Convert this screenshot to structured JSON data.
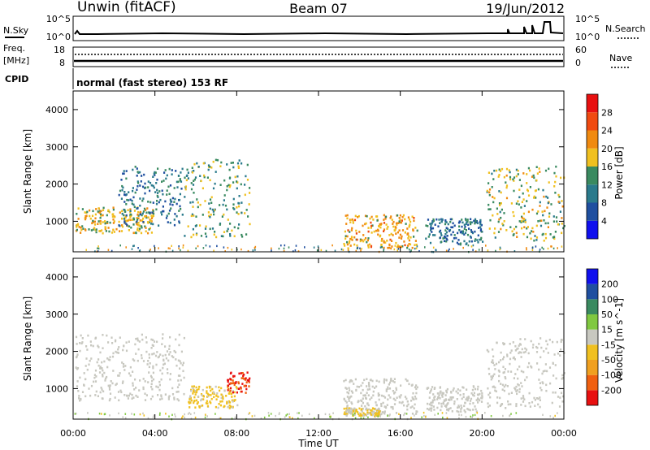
{
  "header": {
    "station": "Unwin (fitACF)",
    "beam": "Beam 07",
    "date": "19/Jun/2012"
  },
  "status_panels": {
    "nsky_label": "N.Sky",
    "nsearch_label": "N.Search",
    "nsky_ticks": [
      "10^5",
      "10^0"
    ],
    "nsearch_ticks": [
      "10^5",
      "10^0"
    ],
    "freq_label": "Freq.",
    "freq_unit": "[MHz]",
    "freq_ticks": [
      "18",
      "8"
    ],
    "nave_label": "Nave",
    "nave_ticks": [
      "60",
      "0"
    ],
    "cpid_label": "CPID",
    "cpid_text": "normal (fast stereo) 153 RF"
  },
  "colors": {
    "power_scale": [
      "#1010ee",
      "#1f4fa0",
      "#2a7a8c",
      "#3a8a60",
      "#f0c020",
      "#f08a10",
      "#f04a10",
      "#e81010"
    ],
    "velocity_scale": [
      "#e81010",
      "#f06010",
      "#f0a020",
      "#f0c020",
      "#c8c8c0",
      "#80c840",
      "#3a8a60",
      "#1f4fa0",
      "#1010ee"
    ]
  },
  "chart_data": [
    {
      "type": "heatmap",
      "parameter": "power",
      "ylabel": "Slant Range [km]",
      "yticks": [
        "4000",
        "3000",
        "2000",
        "1000"
      ],
      "ylim": [
        180,
        4500
      ],
      "xlim": [
        "00:00",
        "24:00"
      ],
      "colorbar_label": "Power [dB]",
      "colorbar_ticks": [
        "28",
        "24",
        "20",
        "16",
        "12",
        "8",
        "4"
      ],
      "colorbar_range": [
        0,
        32
      ],
      "regions": [
        {
          "t": [
            0.1,
            3.9
          ],
          "r": [
            700,
            1400
          ],
          "level": 18
        },
        {
          "t": [
            2.2,
            5.4
          ],
          "r": [
            900,
            2500
          ],
          "level": 10
        },
        {
          "t": [
            5.4,
            8.6
          ],
          "r": [
            600,
            2700
          ],
          "level": 14
        },
        {
          "t": [
            13.2,
            16.8
          ],
          "r": [
            300,
            1200
          ],
          "level": 20
        },
        {
          "t": [
            17.2,
            20.0
          ],
          "r": [
            400,
            1100
          ],
          "level": 9
        },
        {
          "t": [
            20.2,
            24.0
          ],
          "r": [
            500,
            2500
          ],
          "level": 16
        }
      ]
    },
    {
      "type": "heatmap",
      "parameter": "velocity",
      "ylabel": "Slant Range [km]",
      "yticks": [
        "4000",
        "3000",
        "2000",
        "1000"
      ],
      "ylim": [
        180,
        4500
      ],
      "xlim": [
        "00:00",
        "24:00"
      ],
      "xlabel": "Time UT",
      "xticks": [
        "00:00",
        "04:00",
        "08:00",
        "12:00",
        "16:00",
        "20:00",
        "00:00"
      ],
      "colorbar_label": "Velocity [m s^-1]",
      "colorbar_ticks": [
        "200",
        "100",
        "50",
        "15",
        "-15",
        "-50",
        "-100",
        "-200"
      ],
      "colorbar_range": [
        -250,
        250
      ],
      "regions": [
        {
          "t": [
            0.1,
            5.4
          ],
          "r": [
            700,
            2500
          ],
          "level": 0
        },
        {
          "t": [
            5.6,
            8.0
          ],
          "r": [
            500,
            1100
          ],
          "level": -40
        },
        {
          "t": [
            7.5,
            8.6
          ],
          "r": [
            900,
            1500
          ],
          "level": -200
        },
        {
          "t": [
            13.2,
            16.8
          ],
          "r": [
            300,
            1300
          ],
          "level": 0
        },
        {
          "t": [
            13.2,
            15.0
          ],
          "r": [
            300,
            500
          ],
          "level": -30
        },
        {
          "t": [
            17.2,
            20.0
          ],
          "r": [
            400,
            1100
          ],
          "level": 0
        },
        {
          "t": [
            20.2,
            24.0
          ],
          "r": [
            500,
            2400
          ],
          "level": 0
        }
      ]
    }
  ]
}
